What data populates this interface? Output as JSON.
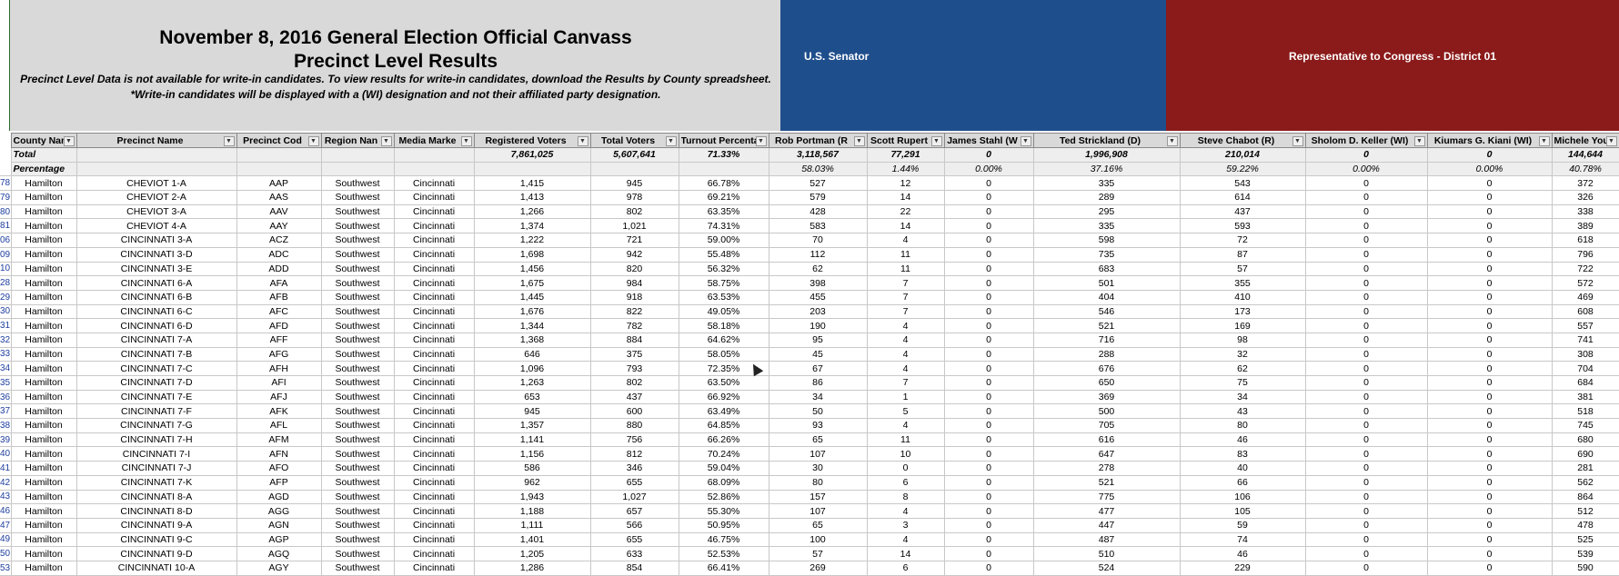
{
  "banner": {
    "title_line1": "November 8, 2016 General Election Official Canvass",
    "title_line2": "Precinct Level Results",
    "note_line1": "Precinct Level Data is not available for write-in candidates. To view results for write-in candidates, download the Results by County spreadsheet.",
    "note_line2": "*Write-in candidates will be displayed with a (WI) designation and not their affiliated party designation.",
    "senate_label": "U.S. Senator",
    "congress_label": "Representative to Congress - District 01",
    "colors": {
      "senate": "#1f4e8c",
      "congress": "#8b1a1a",
      "header_gray": "#d9d9d9"
    }
  },
  "columns": [
    "County Nam",
    "Precinct Name",
    "Precinct Cod",
    "Region Nan",
    "Media Marke",
    "Registered Voters",
    "Total Voters",
    "Turnout Percenta",
    "Rob Portman (R",
    "Scott Rupert",
    "James Stahl (W",
    "Ted Strickland (D)",
    "Steve Chabot (R)",
    "Sholom D. Keller (WI)",
    "Kiumars G. Kiani (WI)",
    "Michele Young"
  ],
  "total_row": [
    "Total",
    "",
    "",
    "",
    "",
    "7,861,025",
    "5,607,641",
    "71.33%",
    "3,118,567",
    "77,291",
    "0",
    "1,996,908",
    "210,014",
    "0",
    "0",
    "144,644"
  ],
  "percentage_row": [
    "Percentage",
    "",
    "",
    "",
    "",
    "",
    "",
    "",
    "58.03%",
    "1.44%",
    "0.00%",
    "37.16%",
    "59.22%",
    "0.00%",
    "0.00%",
    "40.78%"
  ],
  "rows": [
    {
      "rn": "78",
      "c": [
        "Hamilton",
        "CHEVIOT 1-A",
        "AAP",
        "Southwest",
        "Cincinnati",
        "1,415",
        "945",
        "66.78%",
        "527",
        "12",
        "0",
        "335",
        "543",
        "0",
        "0",
        "372"
      ]
    },
    {
      "rn": "79",
      "c": [
        "Hamilton",
        "CHEVIOT 2-A",
        "AAS",
        "Southwest",
        "Cincinnati",
        "1,413",
        "978",
        "69.21%",
        "579",
        "14",
        "0",
        "289",
        "614",
        "0",
        "0",
        "326"
      ]
    },
    {
      "rn": "80",
      "c": [
        "Hamilton",
        "CHEVIOT 3-A",
        "AAV",
        "Southwest",
        "Cincinnati",
        "1,266",
        "802",
        "63.35%",
        "428",
        "22",
        "0",
        "295",
        "437",
        "0",
        "0",
        "338"
      ]
    },
    {
      "rn": "81",
      "c": [
        "Hamilton",
        "CHEVIOT 4-A",
        "AAY",
        "Southwest",
        "Cincinnati",
        "1,374",
        "1,021",
        "74.31%",
        "583",
        "14",
        "0",
        "335",
        "593",
        "0",
        "0",
        "389"
      ]
    },
    {
      "rn": "06",
      "c": [
        "Hamilton",
        "CINCINNATI 3-A",
        "ACZ",
        "Southwest",
        "Cincinnati",
        "1,222",
        "721",
        "59.00%",
        "70",
        "4",
        "0",
        "598",
        "72",
        "0",
        "0",
        "618"
      ]
    },
    {
      "rn": "09",
      "c": [
        "Hamilton",
        "CINCINNATI 3-D",
        "ADC",
        "Southwest",
        "Cincinnati",
        "1,698",
        "942",
        "55.48%",
        "112",
        "11",
        "0",
        "735",
        "87",
        "0",
        "0",
        "796"
      ]
    },
    {
      "rn": "10",
      "c": [
        "Hamilton",
        "CINCINNATI 3-E",
        "ADD",
        "Southwest",
        "Cincinnati",
        "1,456",
        "820",
        "56.32%",
        "62",
        "11",
        "0",
        "683",
        "57",
        "0",
        "0",
        "722"
      ]
    },
    {
      "rn": "28",
      "c": [
        "Hamilton",
        "CINCINNATI 6-A",
        "AFA",
        "Southwest",
        "Cincinnati",
        "1,675",
        "984",
        "58.75%",
        "398",
        "7",
        "0",
        "501",
        "355",
        "0",
        "0",
        "572"
      ]
    },
    {
      "rn": "29",
      "c": [
        "Hamilton",
        "CINCINNATI 6-B",
        "AFB",
        "Southwest",
        "Cincinnati",
        "1,445",
        "918",
        "63.53%",
        "455",
        "7",
        "0",
        "404",
        "410",
        "0",
        "0",
        "469"
      ]
    },
    {
      "rn": "30",
      "c": [
        "Hamilton",
        "CINCINNATI 6-C",
        "AFC",
        "Southwest",
        "Cincinnati",
        "1,676",
        "822",
        "49.05%",
        "203",
        "7",
        "0",
        "546",
        "173",
        "0",
        "0",
        "608"
      ]
    },
    {
      "rn": "31",
      "c": [
        "Hamilton",
        "CINCINNATI 6-D",
        "AFD",
        "Southwest",
        "Cincinnati",
        "1,344",
        "782",
        "58.18%",
        "190",
        "4",
        "0",
        "521",
        "169",
        "0",
        "0",
        "557"
      ]
    },
    {
      "rn": "32",
      "c": [
        "Hamilton",
        "CINCINNATI 7-A",
        "AFF",
        "Southwest",
        "Cincinnati",
        "1,368",
        "884",
        "64.62%",
        "95",
        "4",
        "0",
        "716",
        "98",
        "0",
        "0",
        "741"
      ]
    },
    {
      "rn": "33",
      "c": [
        "Hamilton",
        "CINCINNATI 7-B",
        "AFG",
        "Southwest",
        "Cincinnati",
        "646",
        "375",
        "58.05%",
        "45",
        "4",
        "0",
        "288",
        "32",
        "0",
        "0",
        "308"
      ]
    },
    {
      "rn": "34",
      "c": [
        "Hamilton",
        "CINCINNATI 7-C",
        "AFH",
        "Southwest",
        "Cincinnati",
        "1,096",
        "793",
        "72.35%",
        "67",
        "4",
        "0",
        "676",
        "62",
        "0",
        "0",
        "704"
      ]
    },
    {
      "rn": "35",
      "c": [
        "Hamilton",
        "CINCINNATI 7-D",
        "AFI",
        "Southwest",
        "Cincinnati",
        "1,263",
        "802",
        "63.50%",
        "86",
        "7",
        "0",
        "650",
        "75",
        "0",
        "0",
        "684"
      ]
    },
    {
      "rn": "36",
      "c": [
        "Hamilton",
        "CINCINNATI 7-E",
        "AFJ",
        "Southwest",
        "Cincinnati",
        "653",
        "437",
        "66.92%",
        "34",
        "1",
        "0",
        "369",
        "34",
        "0",
        "0",
        "381"
      ]
    },
    {
      "rn": "37",
      "c": [
        "Hamilton",
        "CINCINNATI 7-F",
        "AFK",
        "Southwest",
        "Cincinnati",
        "945",
        "600",
        "63.49%",
        "50",
        "5",
        "0",
        "500",
        "43",
        "0",
        "0",
        "518"
      ]
    },
    {
      "rn": "38",
      "c": [
        "Hamilton",
        "CINCINNATI 7-G",
        "AFL",
        "Southwest",
        "Cincinnati",
        "1,357",
        "880",
        "64.85%",
        "93",
        "4",
        "0",
        "705",
        "80",
        "0",
        "0",
        "745"
      ]
    },
    {
      "rn": "39",
      "c": [
        "Hamilton",
        "CINCINNATI 7-H",
        "AFM",
        "Southwest",
        "Cincinnati",
        "1,141",
        "756",
        "66.26%",
        "65",
        "11",
        "0",
        "616",
        "46",
        "0",
        "0",
        "680"
      ]
    },
    {
      "rn": "40",
      "c": [
        "Hamilton",
        "CINCINNATI 7-I",
        "AFN",
        "Southwest",
        "Cincinnati",
        "1,156",
        "812",
        "70.24%",
        "107",
        "10",
        "0",
        "647",
        "83",
        "0",
        "0",
        "690"
      ]
    },
    {
      "rn": "41",
      "c": [
        "Hamilton",
        "CINCINNATI 7-J",
        "AFO",
        "Southwest",
        "Cincinnati",
        "586",
        "346",
        "59.04%",
        "30",
        "0",
        "0",
        "278",
        "40",
        "0",
        "0",
        "281"
      ]
    },
    {
      "rn": "42",
      "c": [
        "Hamilton",
        "CINCINNATI 7-K",
        "AFP",
        "Southwest",
        "Cincinnati",
        "962",
        "655",
        "68.09%",
        "80",
        "6",
        "0",
        "521",
        "66",
        "0",
        "0",
        "562"
      ]
    },
    {
      "rn": "43",
      "c": [
        "Hamilton",
        "CINCINNATI 8-A",
        "AGD",
        "Southwest",
        "Cincinnati",
        "1,943",
        "1,027",
        "52.86%",
        "157",
        "8",
        "0",
        "775",
        "106",
        "0",
        "0",
        "864"
      ]
    },
    {
      "rn": "46",
      "c": [
        "Hamilton",
        "CINCINNATI 8-D",
        "AGG",
        "Southwest",
        "Cincinnati",
        "1,188",
        "657",
        "55.30%",
        "107",
        "4",
        "0",
        "477",
        "105",
        "0",
        "0",
        "512"
      ]
    },
    {
      "rn": "47",
      "c": [
        "Hamilton",
        "CINCINNATI 9-A",
        "AGN",
        "Southwest",
        "Cincinnati",
        "1,111",
        "566",
        "50.95%",
        "65",
        "3",
        "0",
        "447",
        "59",
        "0",
        "0",
        "478"
      ]
    },
    {
      "rn": "49",
      "c": [
        "Hamilton",
        "CINCINNATI 9-C",
        "AGP",
        "Southwest",
        "Cincinnati",
        "1,401",
        "655",
        "46.75%",
        "100",
        "4",
        "0",
        "487",
        "74",
        "0",
        "0",
        "525"
      ]
    },
    {
      "rn": "50",
      "c": [
        "Hamilton",
        "CINCINNATI 9-D",
        "AGQ",
        "Southwest",
        "Cincinnati",
        "1,205",
        "633",
        "52.53%",
        "57",
        "14",
        "0",
        "510",
        "46",
        "0",
        "0",
        "539"
      ]
    },
    {
      "rn": "53",
      "c": [
        "Hamilton",
        "CINCINNATI 10-A",
        "AGY",
        "Southwest",
        "Cincinnati",
        "1,286",
        "854",
        "66.41%",
        "269",
        "6",
        "0",
        "524",
        "229",
        "0",
        "0",
        "590"
      ]
    }
  ]
}
